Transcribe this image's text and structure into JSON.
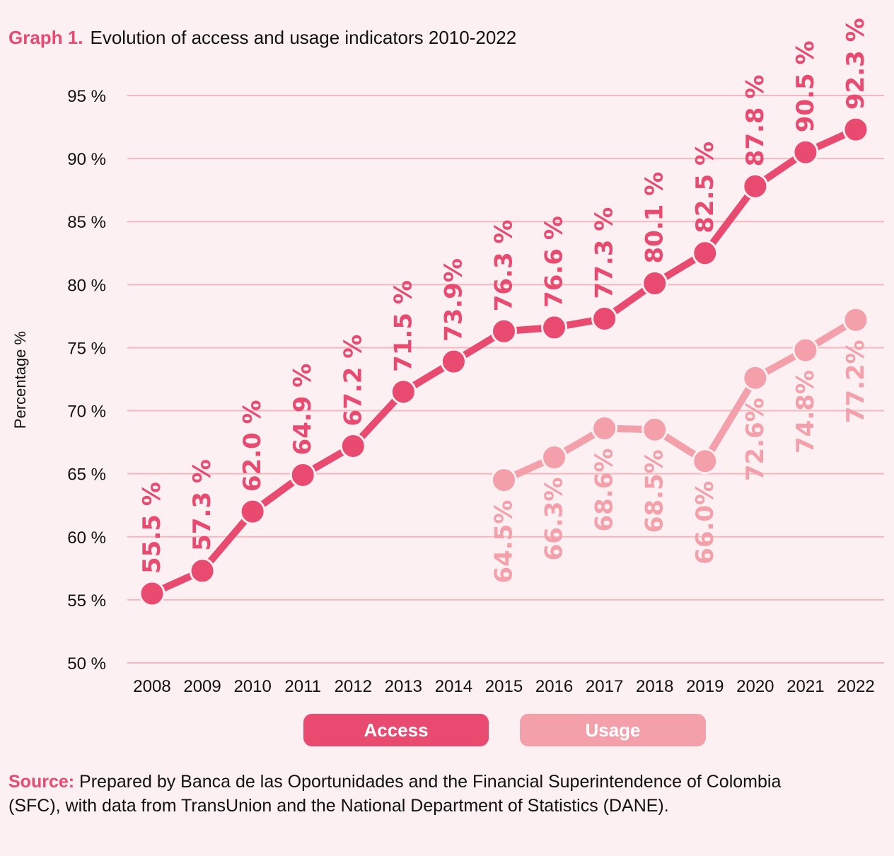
{
  "chart_data": {
    "type": "line",
    "title_prefix": "Graph 1.",
    "title": "Evolution of access and usage indicators 2010-2022",
    "ylabel": "Percentage %",
    "xlabel": "",
    "ylim": [
      50,
      95
    ],
    "yticks": [
      "50 %",
      "55 %",
      "60 %",
      "65 %",
      "70 %",
      "75 %",
      "80 %",
      "85 %",
      "90 %",
      "95 %"
    ],
    "x": [
      "2008",
      "2009",
      "2010",
      "2011",
      "2012",
      "2013",
      "2014",
      "2015",
      "2016",
      "2017",
      "2018",
      "2019",
      "2020",
      "2021",
      "2022"
    ],
    "series": [
      {
        "name": "Access",
        "color": "#e84a70",
        "values": [
          55.5,
          57.3,
          62.0,
          64.9,
          67.2,
          71.5,
          73.9,
          76.3,
          76.6,
          77.3,
          80.1,
          82.5,
          87.8,
          90.5,
          92.3
        ],
        "labels": [
          "55.5 %",
          "57.3 %",
          "62.0 %",
          "64.9 %",
          "67.2 %",
          "71.5 %",
          "73.9%",
          "76.3 %",
          "76.6 %",
          "77.3 %",
          "80.1 %",
          "82.5 %",
          "87.8 %",
          "90.5 %",
          "92.3 %"
        ]
      },
      {
        "name": "Usage",
        "color": "#f4a0aa",
        "values": [
          null,
          null,
          null,
          null,
          null,
          null,
          null,
          64.5,
          66.3,
          68.6,
          68.5,
          66.0,
          72.6,
          74.8,
          77.2
        ],
        "labels": [
          null,
          null,
          null,
          null,
          null,
          null,
          null,
          "64.5%",
          "66.3%",
          "68.6%",
          "68.5%",
          "66.0%",
          "72.6%",
          "74.8%",
          "77.2%"
        ]
      }
    ],
    "grid": true,
    "legend_placement": "bottom"
  },
  "source": {
    "label": "Source:",
    "text": "Prepared by Banca de las Oportunidades and the Financial Superintendence of Colombia (SFC), with data from TransUnion and the National Department of Statistics (DANE)."
  }
}
